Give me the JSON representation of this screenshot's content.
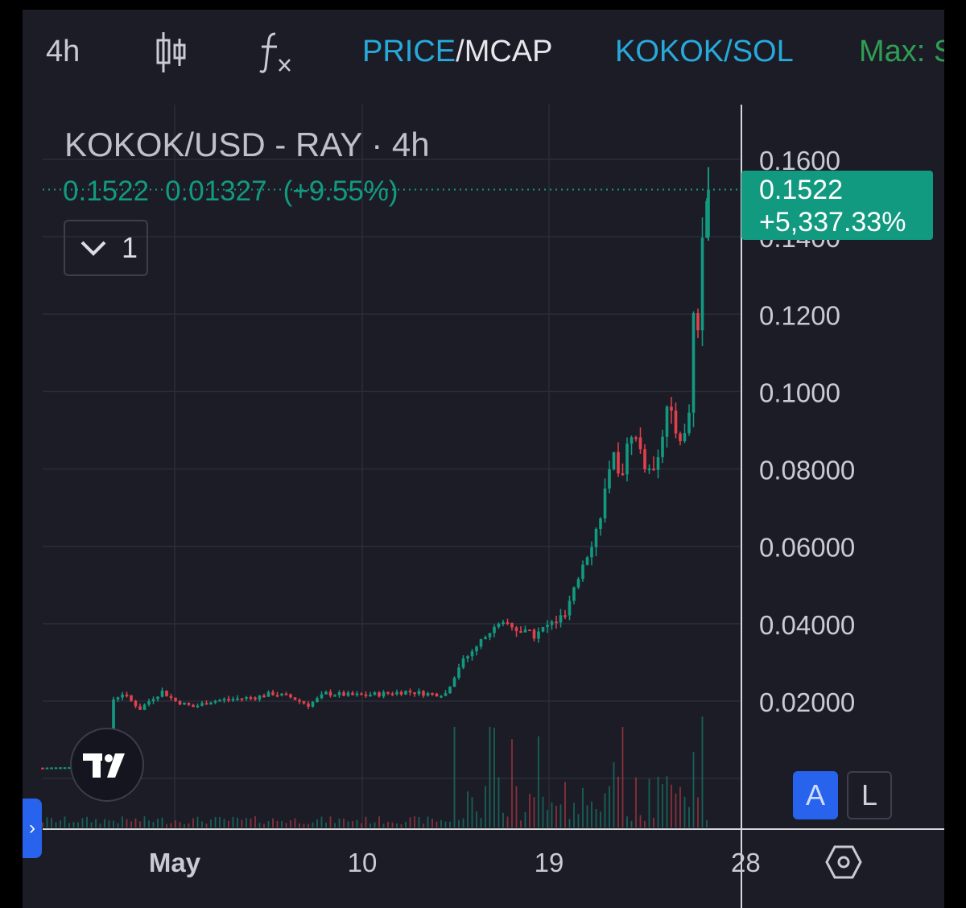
{
  "toolbar": {
    "interval": "4h",
    "candle_icon": "candlestick-icon",
    "indicator_icon": "function-fx-icon",
    "price_label": "PRICE",
    "separator": "/",
    "mcap_label": "MCAP",
    "pair_label": "KOKOK/SOL",
    "max_label": "Max: S"
  },
  "legend": {
    "title": "KOKOK/USD - RAY · 4h",
    "price": "0.1522",
    "change": "0.01327",
    "change_pct": "(+9.55%)",
    "collapse_count": "1",
    "collapse_icon": "chevron-down-icon"
  },
  "price_tag": {
    "price": "0.1522",
    "change_pct": "+5,337.33%"
  },
  "buttons": {
    "auto": "A",
    "log": "L"
  },
  "colors": {
    "up": "#129a80",
    "down": "#e0414b",
    "background": "#1c1c27",
    "accent": "#27a9da"
  },
  "chart_data": {
    "type": "candlestick",
    "title": "KOKOK/USD - RAY · 4h",
    "y_ticks": [
      "0.1600",
      "0.1400",
      "0.1200",
      "0.1000",
      "0.08000",
      "0.06000",
      "0.04000",
      "0.02000"
    ],
    "y_tick_values": [
      0.16,
      0.14,
      0.12,
      0.1,
      0.08,
      0.06,
      0.04,
      0.02
    ],
    "x_ticks": [
      "May",
      "10",
      "19",
      "28"
    ],
    "ylim": [
      0,
      0.17
    ],
    "last_price": 0.1522,
    "trend_close": [
      [
        0,
        0.0028
      ],
      [
        5,
        0.0029
      ],
      [
        12,
        0.0031
      ],
      [
        15,
        0.0034
      ],
      [
        16,
        0.0205
      ],
      [
        18,
        0.022
      ],
      [
        22,
        0.018
      ],
      [
        25,
        0.021
      ],
      [
        27,
        0.0225
      ],
      [
        30,
        0.02
      ],
      [
        34,
        0.0185
      ],
      [
        38,
        0.02
      ],
      [
        42,
        0.0205
      ],
      [
        48,
        0.021
      ],
      [
        52,
        0.022
      ],
      [
        56,
        0.021
      ],
      [
        60,
        0.019
      ],
      [
        64,
        0.022
      ],
      [
        70,
        0.0215
      ],
      [
        76,
        0.0218
      ],
      [
        82,
        0.0225
      ],
      [
        88,
        0.0218
      ],
      [
        91,
        0.022
      ],
      [
        94,
        0.029
      ],
      [
        97,
        0.033
      ],
      [
        101,
        0.038
      ],
      [
        105,
        0.04
      ],
      [
        108,
        0.038
      ],
      [
        111,
        0.037
      ],
      [
        114,
        0.0395
      ],
      [
        118,
        0.042
      ],
      [
        120,
        0.048
      ],
      [
        122,
        0.056
      ],
      [
        125,
        0.064
      ],
      [
        127,
        0.074
      ],
      [
        129,
        0.082
      ],
      [
        131,
        0.08
      ],
      [
        133,
        0.09
      ],
      [
        135,
        0.085
      ],
      [
        137,
        0.078
      ],
      [
        139,
        0.085
      ],
      [
        141,
        0.095
      ],
      [
        143,
        0.09
      ],
      [
        145,
        0.088
      ],
      [
        146,
        0.095
      ],
      [
        147,
        0.12
      ],
      [
        148,
        0.115
      ],
      [
        149,
        0.14
      ],
      [
        150,
        0.1522
      ]
    ]
  }
}
